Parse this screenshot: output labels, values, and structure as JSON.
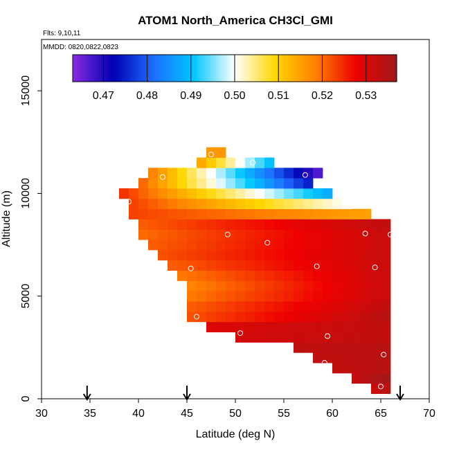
{
  "chart_data": {
    "type": "heatmap",
    "title": "ATOM1 North_America CH3Cl_GMI",
    "flights_label": "Flts: 9,10,11",
    "mmdd_label": "MMDD: 0820,0822,0823",
    "xlabel": "Latitude (deg N)",
    "ylabel": "Altitude (m)",
    "xlim": [
      30,
      70
    ],
    "ylim": [
      0,
      17500
    ],
    "x_ticks": [
      "30",
      "35",
      "40",
      "45",
      "50",
      "55",
      "60",
      "65",
      "70"
    ],
    "y_ticks": [
      "0",
      "5000",
      "10000",
      "15000"
    ],
    "colorbar": {
      "range": [
        0.463,
        0.537
      ],
      "tick_labels": [
        "0.47",
        "0.48",
        "0.49",
        "0.50",
        "0.51",
        "0.52",
        "0.53"
      ],
      "tick_values": [
        0.47,
        0.48,
        0.49,
        0.5,
        0.51,
        0.52,
        0.53
      ],
      "colors": [
        "#8a2be2",
        "#0000b4",
        "#1e6eff",
        "#00c8ff",
        "#ffffff",
        "#ffd700",
        "#ff7f00",
        "#ee0000",
        "#9f1a1a"
      ]
    },
    "cell_size": {
      "lat": 1.0,
      "alt": 500
    },
    "rows": [
      {
        "alt": 500,
        "lat_min": 64.5,
        "lat_max": 65.5,
        "start": 0.532,
        "end": 0.534
      },
      {
        "alt": 1000,
        "lat_min": 62.5,
        "lat_max": 65.5,
        "start": 0.533,
        "end": 0.536
      },
      {
        "alt": 1500,
        "lat_min": 60.5,
        "lat_max": 65.5,
        "start": 0.533,
        "end": 0.534
      },
      {
        "alt": 2000,
        "lat_min": 58.5,
        "lat_max": 65.5,
        "start": 0.533,
        "end": 0.534
      },
      {
        "alt": 2500,
        "lat_min": 56.5,
        "lat_max": 65.5,
        "start": 0.533,
        "end": 0.534
      },
      {
        "alt": 3000,
        "lat_min": 50.5,
        "lat_max": 65.5,
        "start": 0.531,
        "end": 0.533
      },
      {
        "alt": 3500,
        "lat_min": 47.5,
        "lat_max": 65.5,
        "start": 0.53,
        "end": 0.533
      },
      {
        "alt": 4000,
        "lat_min": 45.5,
        "lat_max": 65.5,
        "start": 0.522,
        "end": 0.534
      },
      {
        "alt": 4500,
        "lat_min": 45.5,
        "lat_max": 65.5,
        "start": 0.521,
        "end": 0.533
      },
      {
        "alt": 5000,
        "lat_min": 45.5,
        "lat_max": 65.5,
        "start": 0.519,
        "end": 0.532
      },
      {
        "alt": 5500,
        "lat_min": 45.5,
        "lat_max": 65.5,
        "start": 0.518,
        "end": 0.532
      },
      {
        "alt": 6000,
        "lat_min": 44.5,
        "lat_max": 65.5,
        "start": 0.519,
        "end": 0.532
      },
      {
        "alt": 6500,
        "lat_min": 43.5,
        "lat_max": 65.5,
        "start": 0.521,
        "end": 0.532
      },
      {
        "alt": 7000,
        "lat_min": 42.5,
        "lat_max": 65.5,
        "start": 0.522,
        "end": 0.532
      },
      {
        "alt": 7500,
        "lat_min": 41.5,
        "lat_max": 65.5,
        "start": 0.521,
        "end": 0.532
      },
      {
        "alt": 8000,
        "lat_min": 40.5,
        "lat_max": 65.5,
        "start": 0.52,
        "end": 0.532
      },
      {
        "alt": 8500,
        "lat_min": 40.5,
        "lat_max": 65.5,
        "start": 0.521,
        "end": 0.533
      },
      {
        "alt": 9000,
        "lat_min": 39.5,
        "lat_max": 63.5,
        "start": 0.523,
        "end": 0.515
      },
      {
        "alt": 9500,
        "lat_min": 39.5,
        "lat_max": 61.5,
        "start": 0.523,
        "end": 0.5
      },
      {
        "alt": 10000,
        "lat_min": 38.5,
        "lat_max": 59.5,
        "start": 0.524,
        "end": 0.488
      },
      {
        "alt": 10500,
        "lat_min": 40.5,
        "lat_max": 57.5,
        "start": 0.52,
        "end": 0.475
      },
      {
        "alt": 11000,
        "lat_min": 41.5,
        "lat_max": 58.5,
        "start": 0.518,
        "end": 0.467
      },
      {
        "alt": 11500,
        "lat_min": 46.5,
        "lat_max": 53.5,
        "start": 0.514,
        "end": 0.49
      },
      {
        "alt": 12000,
        "lat_min": 47.5,
        "lat_max": 48.5,
        "start": 0.516,
        "end": 0.516
      }
    ],
    "flight_points": [
      [
        47.5,
        11900
      ],
      [
        51.8,
        11500
      ],
      [
        42.5,
        10800
      ],
      [
        57.2,
        10900
      ],
      [
        39.0,
        9600
      ],
      [
        49.2,
        8000
      ],
      [
        53.3,
        7600
      ],
      [
        63.4,
        8050
      ],
      [
        66.0,
        8000
      ],
      [
        58.4,
        6450
      ],
      [
        64.4,
        6400
      ],
      [
        45.4,
        6350
      ],
      [
        46.0,
        4000
      ],
      [
        50.5,
        3200
      ],
      [
        59.5,
        3050
      ],
      [
        65.3,
        2150
      ],
      [
        59.2,
        1750
      ],
      [
        65.0,
        600
      ]
    ],
    "arrows_lat": [
      34.7,
      45.0,
      67.0
    ]
  }
}
